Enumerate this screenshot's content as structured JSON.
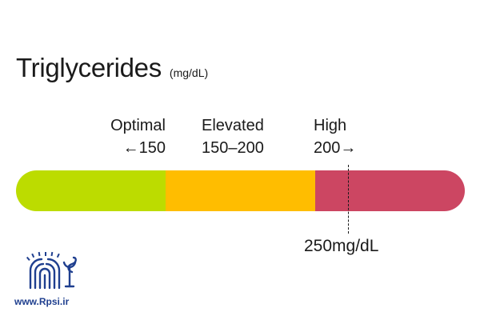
{
  "header": {
    "title": "Triglycerides",
    "unit": "(mg/dL)"
  },
  "ranges": [
    {
      "name": "Optimal",
      "range": "←150",
      "color": "#bcdc00"
    },
    {
      "name": "Elevated",
      "range": "150–200",
      "color": "#ffbd00"
    },
    {
      "name": "High",
      "range": "200→",
      "color": "#cc4662"
    }
  ],
  "marker": {
    "value": 250,
    "label": "250mg/dL"
  },
  "footer": {
    "logo_icon": "rpsi-logo-icon",
    "logo_color": "#1f3f8f",
    "website": "www.Rpsi.ir"
  }
}
